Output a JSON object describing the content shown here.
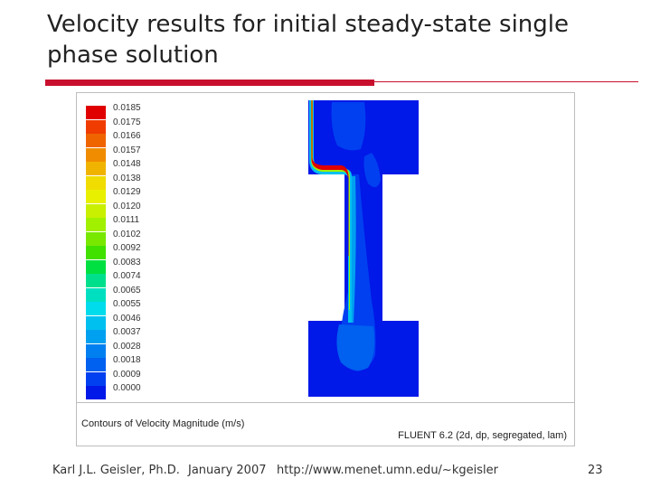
{
  "slide": {
    "title": "Velocity results for initial steady-state single phase solution",
    "accent_color": "#c8102e"
  },
  "figure": {
    "legend_values": [
      "0.0185",
      "0.0175",
      "0.0166",
      "0.0157",
      "0.0148",
      "0.0138",
      "0.0129",
      "0.0120",
      "0.0111",
      "0.0102",
      "0.0092",
      "0.0083",
      "0.0074",
      "0.0065",
      "0.0055",
      "0.0046",
      "0.0037",
      "0.0028",
      "0.0018",
      "0.0009",
      "0.0000"
    ],
    "legend_colors": [
      "#e00000",
      "#f03c00",
      "#f06400",
      "#f08c00",
      "#f0b400",
      "#f0dc00",
      "#e8f000",
      "#c8f000",
      "#a0f000",
      "#78e800",
      "#40e000",
      "#00e040",
      "#00e08c",
      "#00e0c0",
      "#00dcec",
      "#00c0f0",
      "#00a0f0",
      "#0080f0",
      "#0060f0",
      "#0040f0",
      "#0018e8"
    ],
    "caption_left": "Contours of Velocity Magnitude (m/s)",
    "caption_right": "FLUENT 6.2 (2d, dp, segregated, lam)"
  },
  "footer": {
    "author": "Karl J.L. Geisler, Ph.D.",
    "date": "January 2007",
    "url": "http://www.menet.umn.edu/~kgeisler",
    "page": "23"
  }
}
